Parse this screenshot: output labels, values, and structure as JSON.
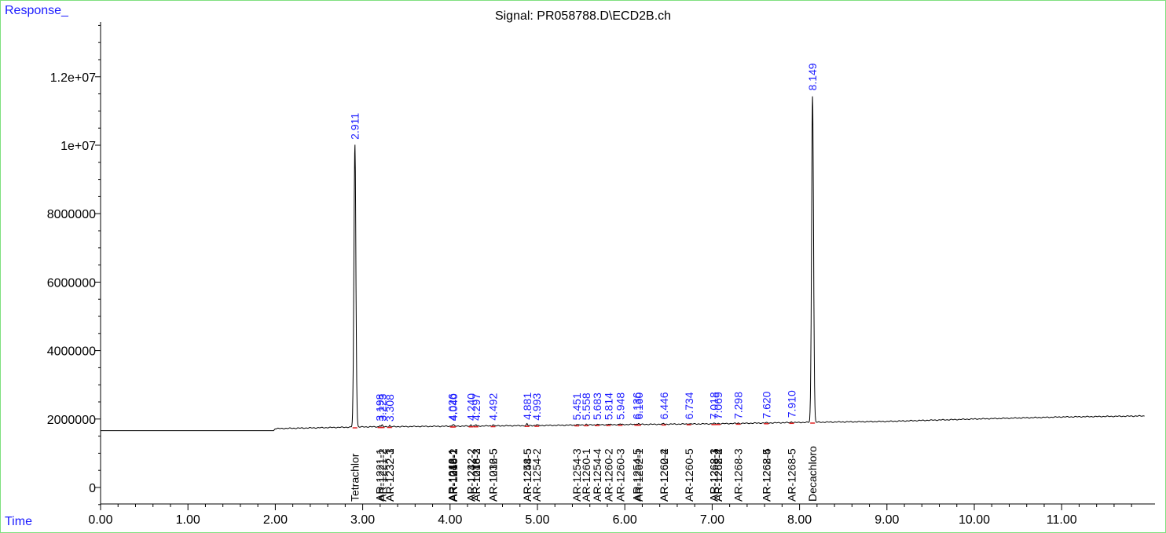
{
  "header": {
    "y_axis_label": "Response_",
    "title": "Signal: PR058788.D\\ECD2B.ch",
    "x_axis_label": "Time"
  },
  "colors": {
    "trace": "#000000",
    "axis": "#000000",
    "retention_labels": "#1a1aff",
    "axis_titles": "#1a1aff",
    "baseline_marks": "#e02020",
    "frame": "#7fe07f"
  },
  "chart_data": {
    "type": "line",
    "title": "Signal: PR058788.D\\ECD2B.ch",
    "xlabel": "Time",
    "ylabel": "Response_",
    "xlim": [
      0,
      11.95
    ],
    "ylim": [
      -600000,
      14000000
    ],
    "grid": false,
    "x_ticks": [
      "0.00",
      "1.00",
      "2.00",
      "3.00",
      "4.00",
      "5.00",
      "6.00",
      "7.00",
      "8.00",
      "9.00",
      "10.00",
      "11.00"
    ],
    "y_ticks": [
      {
        "value": 0,
        "label": "0"
      },
      {
        "value": 2000000,
        "label": "2000000"
      },
      {
        "value": 4000000,
        "label": "4000000"
      },
      {
        "value": 6000000,
        "label": "6000000"
      },
      {
        "value": 8000000,
        "label": "8000000"
      },
      {
        "value": 10000000,
        "label": "1e+07"
      },
      {
        "value": 12000000,
        "label": "1.2e+07"
      }
    ],
    "baseline": [
      [
        0,
        1660000
      ],
      [
        1.98,
        1660000
      ],
      [
        2.0,
        1720000
      ],
      [
        3.0,
        1770000
      ],
      [
        5.0,
        1810000
      ],
      [
        6.0,
        1840000
      ],
      [
        7.0,
        1860000
      ],
      [
        8.0,
        1900000
      ],
      [
        9.0,
        1930000
      ],
      [
        10.0,
        2000000
      ],
      [
        11.0,
        2060000
      ],
      [
        11.95,
        2090000
      ]
    ],
    "peaks": [
      {
        "rt": 2.911,
        "label": "2.911",
        "height": 10050000
      },
      {
        "rt": 3.198,
        "label": "3.198",
        "height": 1820000
      },
      {
        "rt": 3.223,
        "label": "3.223",
        "height": 1820000
      },
      {
        "rt": 3.308,
        "label": "3.308",
        "height": 1810000
      },
      {
        "rt": 4.026,
        "label": "4.026",
        "height": 1830000
      },
      {
        "rt": 4.04,
        "label": "4.040",
        "height": 1830000
      },
      {
        "rt": 4.24,
        "label": "4.240",
        "height": 1835000
      },
      {
        "rt": 4.297,
        "label": "4.297",
        "height": 1835000
      },
      {
        "rt": 4.492,
        "label": "4.492",
        "height": 1840000
      },
      {
        "rt": 4.881,
        "label": "4.881",
        "height": 1860000
      },
      {
        "rt": 4.993,
        "label": "4.993",
        "height": 1840000
      },
      {
        "rt": 5.451,
        "label": "5.451",
        "height": 1850000
      },
      {
        "rt": 5.558,
        "label": "5.558",
        "height": 1850000
      },
      {
        "rt": 5.683,
        "label": "5.683",
        "height": 1855000
      },
      {
        "rt": 5.814,
        "label": "5.814",
        "height": 1855000
      },
      {
        "rt": 5.948,
        "label": "5.948",
        "height": 1860000
      },
      {
        "rt": 6.136,
        "label": "6.136",
        "height": 1865000
      },
      {
        "rt": 6.16,
        "label": "6.160",
        "height": 1865000
      },
      {
        "rt": 6.446,
        "label": "6.446",
        "height": 1870000
      },
      {
        "rt": 6.734,
        "label": "6.734",
        "height": 1870000
      },
      {
        "rt": 7.018,
        "label": "7.018",
        "height": 1875000
      },
      {
        "rt": 7.069,
        "label": "7.069",
        "height": 1875000
      },
      {
        "rt": 7.298,
        "label": "7.298",
        "height": 1880000
      },
      {
        "rt": 7.62,
        "label": "7.620",
        "height": 1890000
      },
      {
        "rt": 7.91,
        "label": "7.910",
        "height": 1920000
      },
      {
        "rt": 8.149,
        "label": "8.149",
        "height": 11480000
      }
    ],
    "compounds": [
      {
        "rt": 2.911,
        "name": "Tetrachlor"
      },
      {
        "rt": 3.198,
        "name": "AR-1221-1"
      },
      {
        "rt": 3.223,
        "name": "AR-1221-2"
      },
      {
        "rt": 3.308,
        "name": "AR-1232-1"
      },
      {
        "rt": 3.308,
        "name": "AR-1232-3"
      },
      {
        "rt": 4.026,
        "name": "AR-1016-1"
      },
      {
        "rt": 4.026,
        "name": "AR-1242-1"
      },
      {
        "rt": 4.04,
        "name": "AR-1248-1"
      },
      {
        "rt": 4.04,
        "name": "AR-1016-2"
      },
      {
        "rt": 4.24,
        "name": "AR-1232-2"
      },
      {
        "rt": 4.24,
        "name": "AR-1242-2"
      },
      {
        "rt": 4.297,
        "name": "AR-1016-3"
      },
      {
        "rt": 4.297,
        "name": "AR-1248-2"
      },
      {
        "rt": 4.492,
        "name": "AR-1232-5"
      },
      {
        "rt": 4.492,
        "name": "AR-1016-5"
      },
      {
        "rt": 4.881,
        "name": "AR-1248-5"
      },
      {
        "rt": 4.881,
        "name": "AR-1254-5"
      },
      {
        "rt": 4.993,
        "name": "AR-1254-2"
      },
      {
        "rt": 5.451,
        "name": "AR-1254-3"
      },
      {
        "rt": 5.558,
        "name": "AR-1260-1"
      },
      {
        "rt": 5.683,
        "name": "AR-1254-4"
      },
      {
        "rt": 5.814,
        "name": "AR-1260-2"
      },
      {
        "rt": 5.948,
        "name": "AR-1260-3"
      },
      {
        "rt": 6.136,
        "name": "AR-1254-5"
      },
      {
        "rt": 6.16,
        "name": "AR-1262-1"
      },
      {
        "rt": 6.446,
        "name": "AR-1260-4"
      },
      {
        "rt": 6.446,
        "name": "AR-1262-2"
      },
      {
        "rt": 6.734,
        "name": "AR-1260-5"
      },
      {
        "rt": 7.018,
        "name": "AR-1268-1"
      },
      {
        "rt": 7.018,
        "name": "AR-1262-3"
      },
      {
        "rt": 7.069,
        "name": "AR-1268-2"
      },
      {
        "rt": 7.069,
        "name": "AR-1262-4"
      },
      {
        "rt": 7.298,
        "name": "AR-1268-3"
      },
      {
        "rt": 7.62,
        "name": "AR-1262-5"
      },
      {
        "rt": 7.62,
        "name": "AR-1268-4"
      },
      {
        "rt": 7.91,
        "name": "AR-1268-5"
      },
      {
        "rt": 8.149,
        "name": "Decachloro"
      }
    ]
  }
}
